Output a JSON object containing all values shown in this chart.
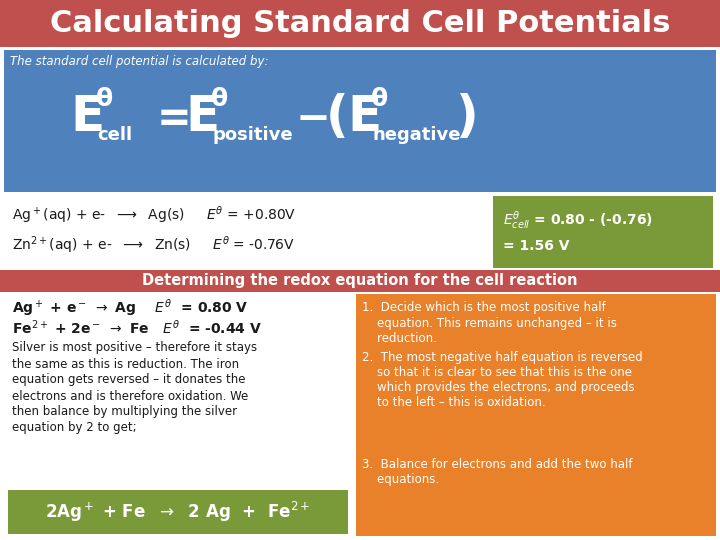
{
  "title": "Calculating Standard Cell Potentials",
  "title_bg": "#c0504d",
  "title_color": "#ffffff",
  "section1_bg": "#4f81bd",
  "section1_subtitle": "The standard cell potential is calculated by:",
  "middle_bg": "#ffffff",
  "green_box_bg": "#7a9a3a",
  "green_box_color": "#ffffff",
  "section3_bg": "#c0504d",
  "section3_title": "Determining the redox equation for the cell reaction",
  "section3_title_color": "#ffffff",
  "bottom_left_bg": "#ffffff",
  "bottom_green_bg": "#7a9a3a",
  "bottom_green_color": "#ffffff",
  "orange_bg": "#e8812a",
  "orange_color": "#ffffff",
  "orange_points": [
    "Decide which is the most positive half equation. This remains unchanged – it is reduction.",
    "The most negative half equation is reversed so that it is clear to see that this is the one which provides the electrons, and proceeds to the left – this is oxidation.",
    "Balance for electrons and add the two half equations."
  ]
}
